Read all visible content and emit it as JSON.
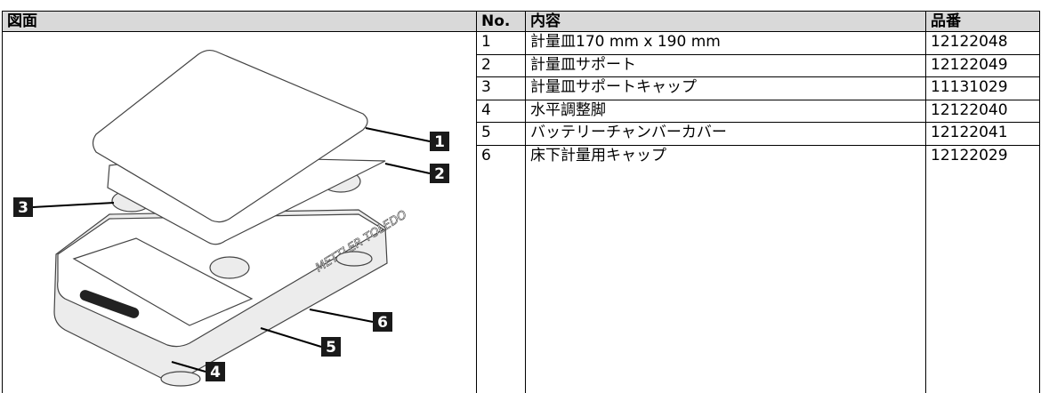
{
  "table": {
    "columns": [
      "図面",
      "No.",
      "内容",
      "品番"
    ],
    "rows": [
      [
        "1",
        "計量皿170 mm x 190 mm",
        "12122048"
      ],
      [
        "2",
        "計量皿サポート",
        "12122049"
      ],
      [
        "3",
        "計量皿サポートキャップ",
        "11131029"
      ],
      [
        "4",
        "水平調整脚",
        "12122040"
      ],
      [
        "5",
        "バッテリーチャンバーカバー",
        "12122041"
      ],
      [
        "6",
        "床下計量用キャップ",
        "12122029"
      ]
    ]
  },
  "figure": {
    "brand": "METTLER TOLEDO",
    "callouts": [
      "1",
      "2",
      "3",
      "4",
      "5",
      "6"
    ]
  }
}
